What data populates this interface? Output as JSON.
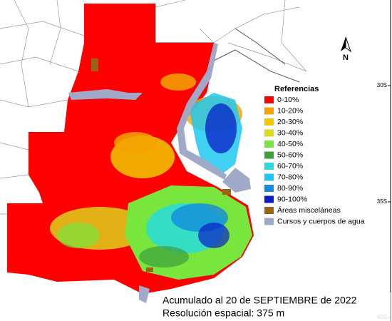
{
  "legend": {
    "title": "Referencias",
    "items": [
      {
        "label": "0-10%",
        "color": "#ff0000"
      },
      {
        "label": "10-20%",
        "color": "#f5a300"
      },
      {
        "label": "20-30%",
        "color": "#f0c800"
      },
      {
        "label": "30-40%",
        "color": "#dcdc1e"
      },
      {
        "label": "40-50%",
        "color": "#78e63c"
      },
      {
        "label": "50-60%",
        "color": "#3ca03c"
      },
      {
        "label": "60-70%",
        "color": "#28dcdc"
      },
      {
        "label": "70-80%",
        "color": "#1ec8f0"
      },
      {
        "label": "80-90%",
        "color": "#148cdc"
      },
      {
        "label": "90-100%",
        "color": "#0a1ec8"
      },
      {
        "label": "Áreas misceláneas",
        "color": "#9a6414"
      },
      {
        "label": "Cursos y cuerpos de agua",
        "color": "#a0aac8"
      }
    ]
  },
  "latitude_labels": [
    "30S",
    "35S",
    "40S"
  ],
  "north_label": "N",
  "caption": [
    "Acumulado al 20 de SEPTIEMBRE de 2022",
    "Resolución espacial: 375 m"
  ]
}
